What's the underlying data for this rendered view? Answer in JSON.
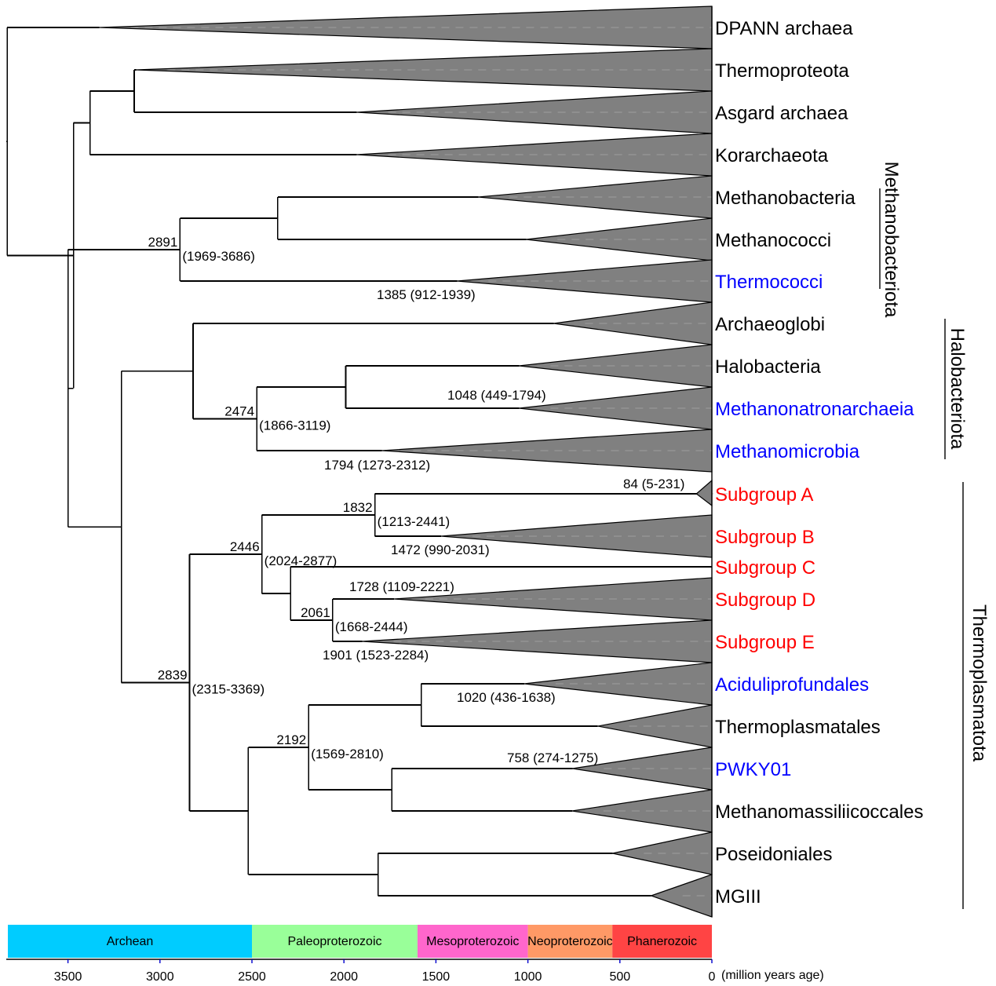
{
  "chart_data": {
    "type": "tree",
    "title": "",
    "xlabel": "(million years age)",
    "xlim": [
      3830,
      0
    ],
    "x_ticks": [
      3500,
      3000,
      2500,
      2000,
      1500,
      1000,
      500,
      0
    ],
    "colors": {
      "black": "#000000",
      "blue": "#0000ff",
      "red": "#ff0000",
      "clade_fill": "#808080"
    },
    "leaves": [
      {
        "id": "dpann",
        "label": "DPANN archaea",
        "color": "black",
        "stem_age": 3330
      },
      {
        "id": "thermoproteota",
        "label": "Thermoproteota",
        "color": "black",
        "stem_age": 3130
      },
      {
        "id": "asgard",
        "label": "Asgard archaea",
        "color": "black",
        "stem_age": 1930
      },
      {
        "id": "korarchaeota",
        "label": "Korarchaeota",
        "color": "black",
        "stem_age": 1930
      },
      {
        "id": "methanobacteria",
        "label": "Methanobacteria",
        "color": "black",
        "stem_age": 1270
      },
      {
        "id": "methanococci",
        "label": "Methanococci",
        "color": "black",
        "stem_age": 1010
      },
      {
        "id": "thermococci",
        "label": "Thermococci",
        "color": "blue",
        "stem_age": 1385
      },
      {
        "id": "archaeoglobi",
        "label": "Archaeoglobi",
        "color": "black",
        "stem_age": 860
      },
      {
        "id": "halobacteria",
        "label": "Halobacteria",
        "color": "black",
        "stem_age": 1048
      },
      {
        "id": "methanonatronarchaeia",
        "label": "Methanonatronarchaeia",
        "color": "blue",
        "stem_age": 1048
      },
      {
        "id": "methanomicrobia",
        "label": "Methanomicrobia",
        "color": "blue",
        "stem_age": 1794
      },
      {
        "id": "subgroup_a",
        "label": "Subgroup A",
        "color": "red",
        "stem_age": 84
      },
      {
        "id": "subgroup_b",
        "label": "Subgroup B",
        "color": "red",
        "stem_age": 1472
      },
      {
        "id": "subgroup_c",
        "label": "Subgroup C",
        "color": "red",
        "stem_age": 0
      },
      {
        "id": "subgroup_d",
        "label": "Subgroup D",
        "color": "red",
        "stem_age": 1728
      },
      {
        "id": "subgroup_e",
        "label": "Subgroup E",
        "color": "red",
        "stem_age": 1901
      },
      {
        "id": "aciduliprofundales",
        "label": "Aciduliprofundales",
        "color": "blue",
        "stem_age": 1020
      },
      {
        "id": "thermoplasmatales",
        "label": "Thermoplasmatales",
        "color": "black",
        "stem_age": 620
      },
      {
        "id": "pwky01",
        "label": "PWKY01",
        "color": "blue",
        "stem_age": 758
      },
      {
        "id": "methanomassiliicoccales",
        "label": "Methanomassiliicoccales",
        "color": "black",
        "stem_age": 760
      },
      {
        "id": "poseidoniales",
        "label": "Poseidoniales",
        "color": "black",
        "stem_age": 540
      },
      {
        "id": "mgiii",
        "label": "MGIII",
        "color": "black",
        "stem_age": 330
      }
    ],
    "nodes": [
      {
        "id": "root",
        "age": 3830,
        "children": [
          "dpann",
          "n_main"
        ]
      },
      {
        "id": "n_main",
        "age": 3470,
        "children": [
          "n_tacka",
          "n_euryarch"
        ]
      },
      {
        "id": "n_tacka",
        "age": 3380,
        "children": [
          "n_tp_asg",
          "korarchaeota"
        ]
      },
      {
        "id": "n_tp_asg",
        "age": 3140,
        "children": [
          "thermoproteota",
          "asgard"
        ]
      },
      {
        "id": "n_euryarch",
        "age": 3500,
        "children": [
          "n_methanobact",
          "n_rest"
        ]
      },
      {
        "id": "n_methanobact",
        "age": 2891,
        "ci": "1969-3686",
        "label": "2891 (1969-3686)",
        "children": [
          "n_mb_mc",
          "thermococci"
        ]
      },
      {
        "id": "n_mb_mc",
        "age": 2360,
        "children": [
          "methanobacteria",
          "methanococci"
        ]
      },
      {
        "id": "n_rest",
        "age": 3210,
        "children": [
          "n_halo",
          "n_thermoplasm"
        ]
      },
      {
        "id": "n_halo",
        "age": 2820,
        "children": [
          "archaeoglobi",
          "n_2474"
        ]
      },
      {
        "id": "n_2474",
        "age": 2474,
        "ci": "1866-3119",
        "label": "2474 (1866-3119)",
        "children": [
          "n_halo_meth",
          "methanomicrobia"
        ]
      },
      {
        "id": "n_halo_meth",
        "age": 1990,
        "children": [
          "halobacteria",
          "methanonatronarchaeia"
        ]
      },
      {
        "id": "n_thermoplasm",
        "age": 2839,
        "ci": "2315-3369",
        "label": "2839 (2315-3369)",
        "children": [
          "n_2446",
          "n_tp2"
        ]
      },
      {
        "id": "n_2446",
        "age": 2446,
        "ci": "2024-2877",
        "label": "2446 (2024-2877)",
        "children": [
          "n_1832",
          "n_cde"
        ]
      },
      {
        "id": "n_1832",
        "age": 1832,
        "ci": "1213-2441",
        "label": "1832 (1213-2441)",
        "children": [
          "subgroup_a",
          "subgroup_b"
        ]
      },
      {
        "id": "n_cde",
        "age": 2290,
        "children": [
          "subgroup_c",
          "n_2061"
        ]
      },
      {
        "id": "n_2061",
        "age": 2061,
        "ci": "1668-2444",
        "label": "2061 (1668-2444)",
        "children": [
          "subgroup_d",
          "subgroup_e"
        ]
      },
      {
        "id": "n_tp2",
        "age": 2520,
        "children": [
          "n_2192",
          "n_pos"
        ]
      },
      {
        "id": "n_2192",
        "age": 2192,
        "ci": "1569-2810",
        "label": "2192 (1569-2810)",
        "children": [
          "n_acid",
          "n_pwky"
        ]
      },
      {
        "id": "n_acid",
        "age": 1580,
        "children": [
          "aciduliprofundales",
          "thermoplasmatales"
        ]
      },
      {
        "id": "n_pwky",
        "age": 1740,
        "children": [
          "pwky01",
          "methanomassiliicoccales"
        ]
      },
      {
        "id": "n_pos",
        "age": 1815,
        "children": [
          "poseidoniales",
          "mgiii"
        ]
      }
    ],
    "branch_annotations": [
      {
        "leaf": "thermococci",
        "label": "1385 (912-1939)",
        "age": 1385,
        "ci": "912-1939"
      },
      {
        "leaf": "methanonatronarchaeia",
        "label": "1048 (449-1794)",
        "age": 1048,
        "ci": "449-1794"
      },
      {
        "leaf": "methanomicrobia",
        "label": "1794 (1273-2312)",
        "age": 1794,
        "ci": "1273-2312"
      },
      {
        "leaf": "subgroup_a",
        "label": "84 (5-231)",
        "age": 84,
        "ci": "5-231"
      },
      {
        "leaf": "subgroup_b",
        "label": "1472 (990-2031)",
        "age": 1472,
        "ci": "990-2031"
      },
      {
        "leaf": "subgroup_d",
        "label": "1728 (1109-2221)",
        "age": 1728,
        "ci": "1109-2221"
      },
      {
        "leaf": "subgroup_e",
        "label": "1901 (1523-2284)",
        "age": 1901,
        "ci": "1523-2284"
      },
      {
        "leaf": "aciduliprofundales",
        "label": "1020 (436-1638)",
        "age": 1020,
        "ci": "436-1638"
      },
      {
        "leaf": "pwky01",
        "label": "758 (274-1275)",
        "age": 758,
        "ci": "274-1275"
      }
    ],
    "clade_brackets": [
      {
        "label": "Methanobacteriota",
        "from": "methanobacteria",
        "to": "thermococci"
      },
      {
        "label": "Halobacteriota",
        "from": "archaeoglobi",
        "to": "methanomicrobia"
      },
      {
        "label": "Thermoplasmatota",
        "from": "subgroup_a",
        "to": "mgiii"
      }
    ],
    "eras": [
      {
        "name": "Archean",
        "start": 3830,
        "end": 2500,
        "color": "#00ccff"
      },
      {
        "name": "Paleoproterozoic",
        "start": 2500,
        "end": 1600,
        "color": "#99ff99"
      },
      {
        "name": "Mesoproterozoic",
        "start": 1600,
        "end": 1000,
        "color": "#ff66cc"
      },
      {
        "name": "Neoproterozoic",
        "start": 1000,
        "end": 541,
        "color": "#ff9966"
      },
      {
        "name": "Phanerozoic",
        "start": 541,
        "end": 0,
        "color": "#ff4444"
      }
    ]
  }
}
